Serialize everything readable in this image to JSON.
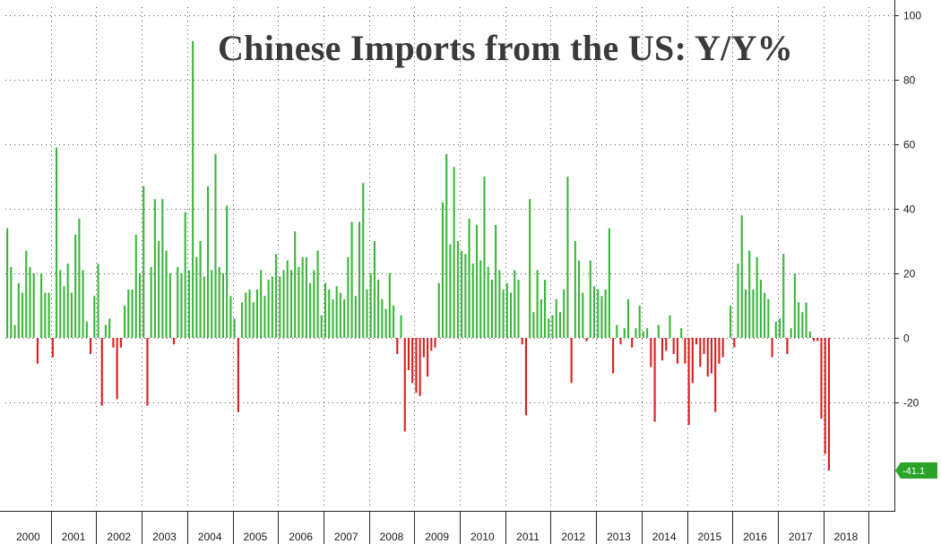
{
  "chart_data": {
    "type": "bar",
    "title": "Chinese Imports from the US: Y/Y%",
    "xlabel": "",
    "ylabel": "",
    "ylim": [
      -50,
      100
    ],
    "yticks": [
      100,
      80,
      60,
      40,
      20,
      0,
      -20
    ],
    "grid": true,
    "colors": {
      "positive": "#3bb53b",
      "negative": "#d91e1e",
      "last_marker": "#2aa52a"
    },
    "years": [
      "2000",
      "2001",
      "2002",
      "2003",
      "2004",
      "2005",
      "2006",
      "2007",
      "2008",
      "2009",
      "2010",
      "2011",
      "2012",
      "2013",
      "2014",
      "2015",
      "2016",
      "2017",
      "2018"
    ],
    "values": [
      34,
      22,
      4,
      17,
      14,
      27,
      22,
      20,
      -8,
      20,
      14,
      14,
      -6,
      59,
      21,
      16,
      23,
      14,
      32,
      37,
      21,
      5,
      -5,
      13,
      23,
      -21,
      4,
      6,
      -3,
      -19,
      -3,
      10,
      15,
      15,
      32,
      20,
      47,
      -21,
      22,
      43,
      30,
      43,
      27,
      20,
      -2,
      22,
      20,
      39,
      21,
      92,
      25,
      30,
      19,
      47,
      21,
      57,
      22,
      20,
      41,
      13,
      6,
      -23,
      11,
      14,
      15,
      11,
      15,
      21,
      13,
      18,
      19,
      26,
      19,
      21,
      24,
      21,
      33,
      22,
      25,
      25,
      17,
      21,
      27,
      7,
      17,
      15,
      12,
      16,
      14,
      12,
      25,
      36,
      13,
      36,
      48,
      15,
      20,
      30,
      18,
      12,
      9,
      20,
      10,
      -5,
      7,
      -29,
      -10,
      -14,
      -17,
      -18,
      -6,
      -12,
      -4,
      -3,
      17,
      42,
      57,
      29,
      53,
      30,
      27,
      26,
      37,
      23,
      35,
      24,
      50,
      22,
      18,
      35,
      21,
      15,
      17,
      14,
      21,
      18,
      -2,
      -24,
      43,
      8,
      21,
      12,
      18,
      6,
      7,
      12,
      8,
      15,
      50,
      -14,
      30,
      24,
      14,
      -1,
      24,
      16,
      15,
      13,
      15,
      34,
      -11,
      4,
      -2,
      3,
      12,
      -3,
      3,
      10,
      2,
      3,
      -9,
      -26,
      4,
      -7,
      -4,
      7,
      -5,
      -8,
      3,
      -8,
      -27,
      -14,
      -2,
      -9,
      -5,
      -12,
      -11,
      -23,
      -8,
      -6,
      0,
      10,
      -3,
      23,
      38,
      15,
      27,
      15,
      25,
      18,
      14,
      12,
      -6,
      5,
      6,
      26,
      -5,
      3,
      20,
      11,
      8,
      11,
      2,
      -1,
      -1,
      -25,
      -36,
      -41.1
    ],
    "last_value_label": "-41.1"
  }
}
